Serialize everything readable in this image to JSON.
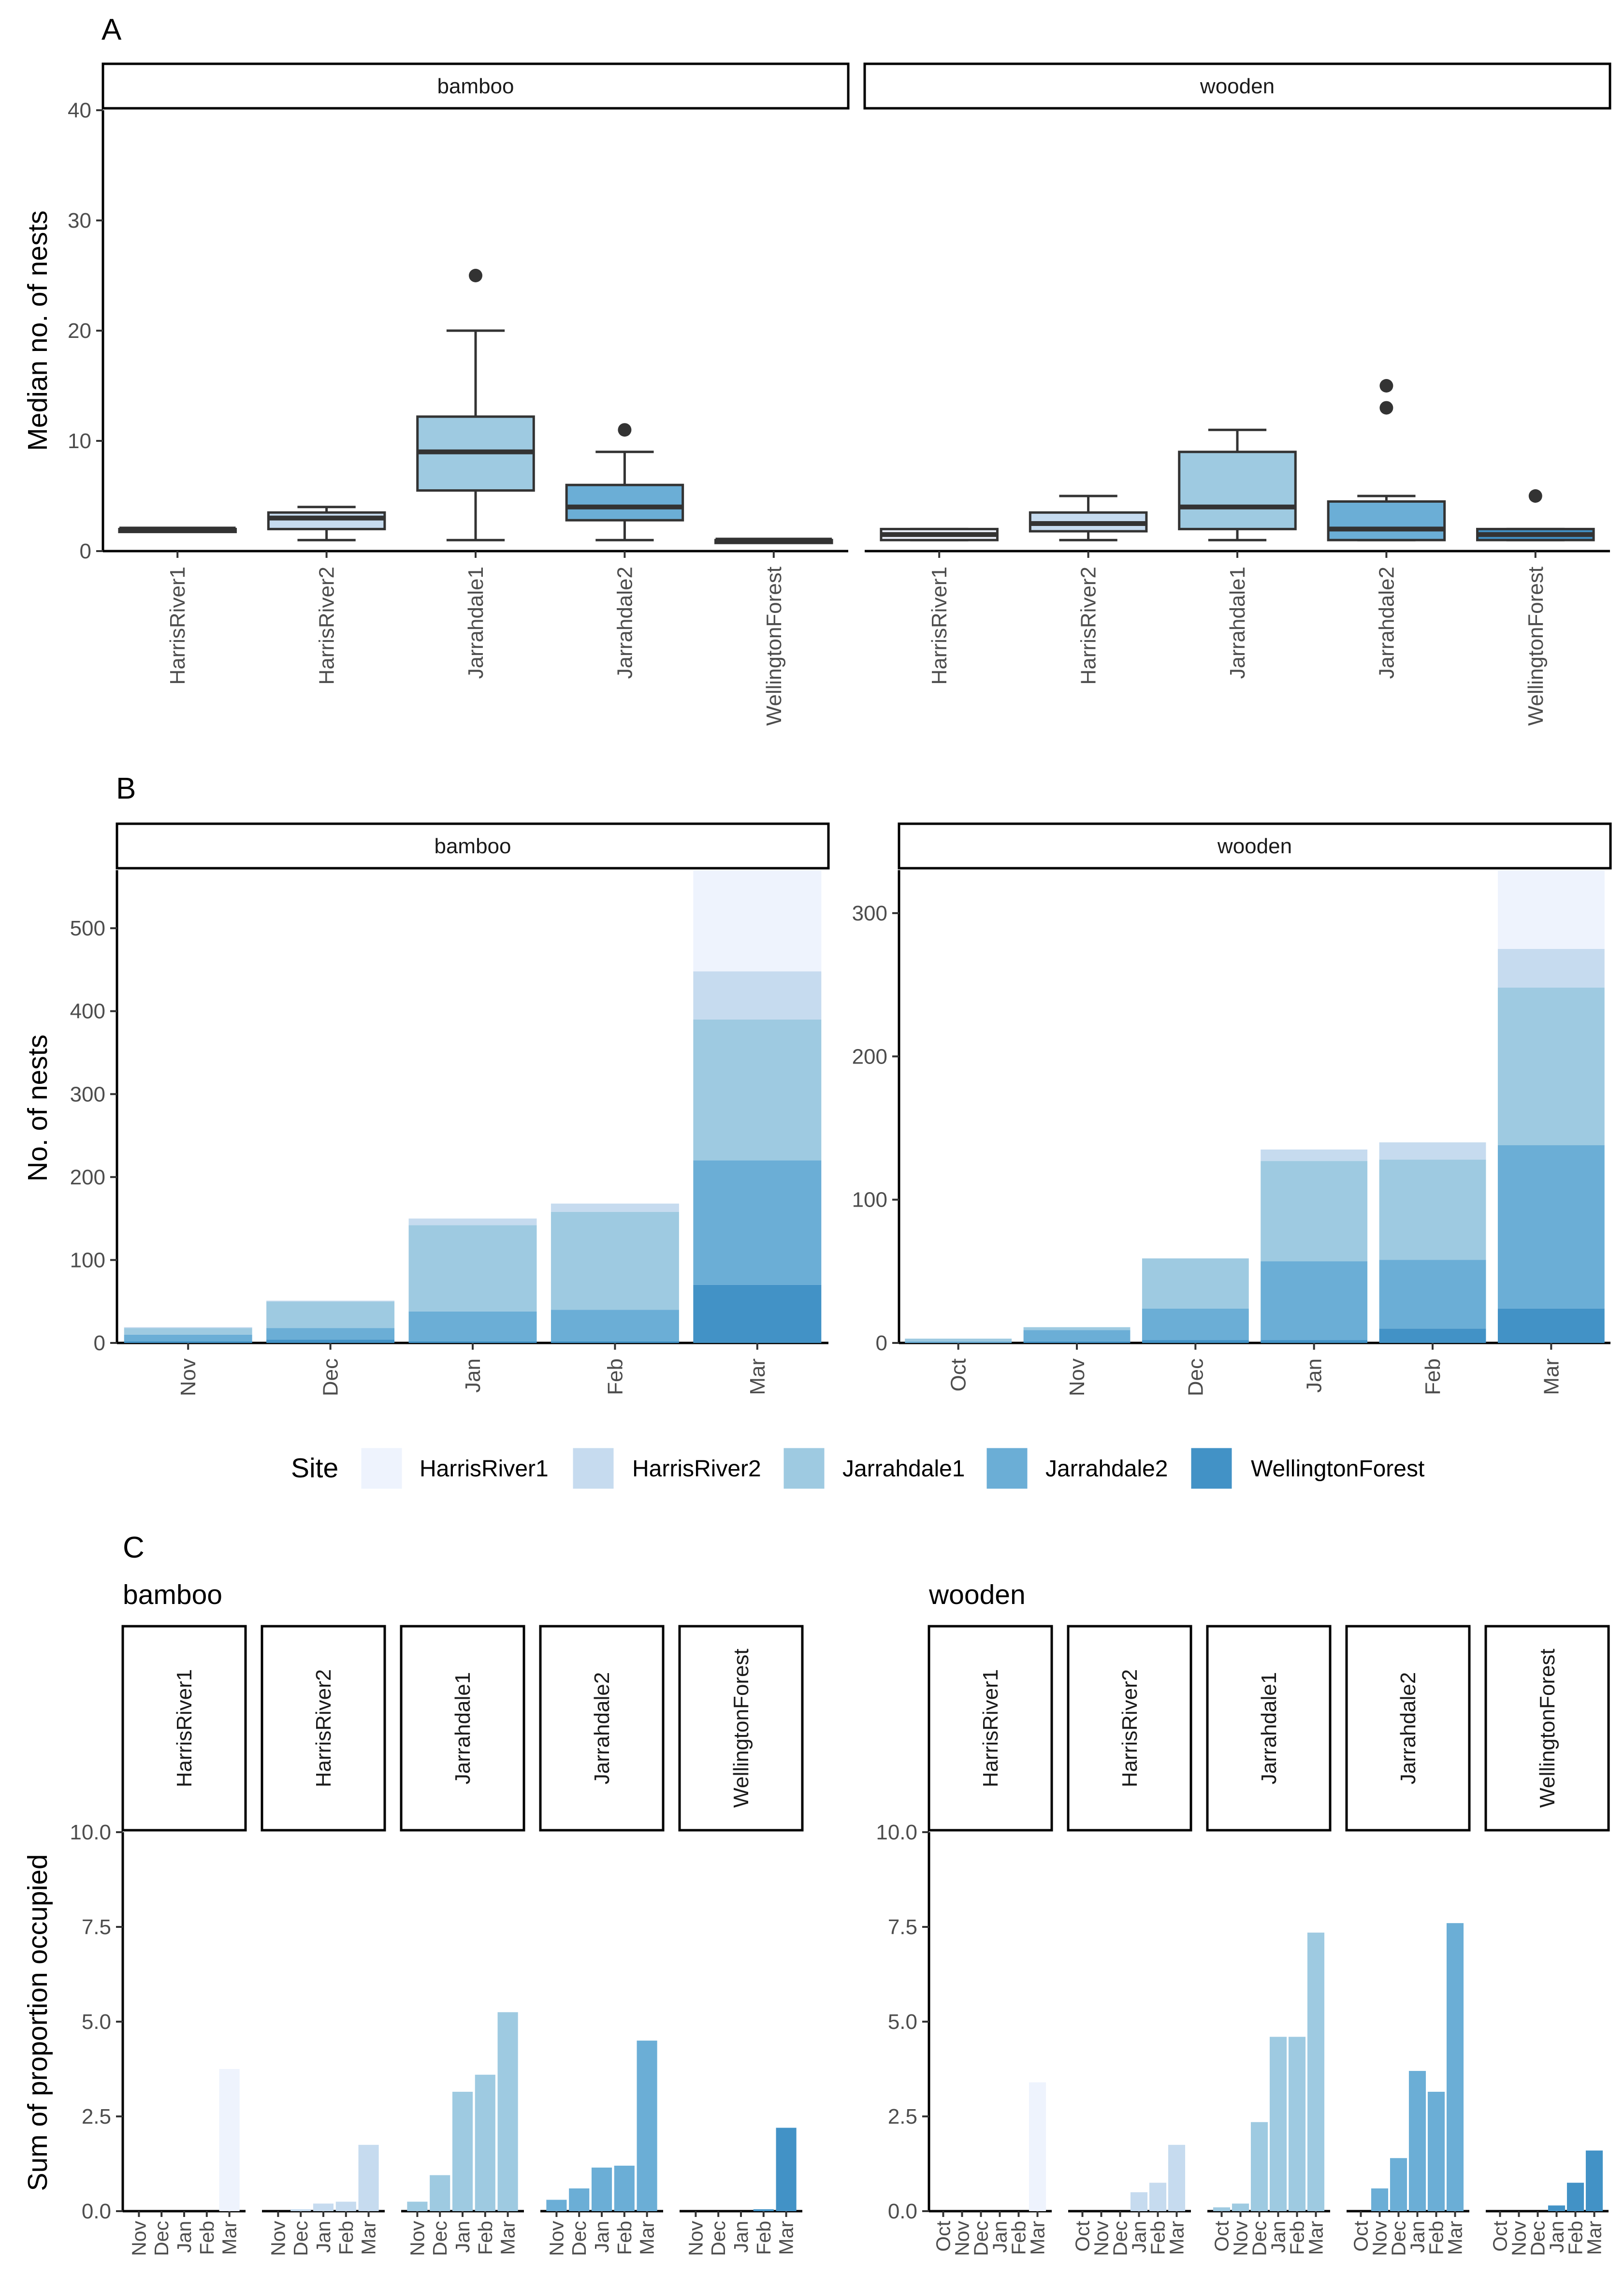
{
  "chart_data": [
    {
      "id": "A",
      "type": "box",
      "panel_label": "A",
      "ylabel": "Median no. of nests",
      "ylim": [
        0,
        40
      ],
      "yticks": [
        0,
        10,
        20,
        30,
        40
      ],
      "facets": [
        {
          "name": "bamboo",
          "boxes": [
            {
              "site": "HarrisRiver1",
              "color": "#eef3fd",
              "min": 2,
              "q1": 2,
              "median": 2,
              "q3": 2,
              "max": 2,
              "outliers": []
            },
            {
              "site": "HarrisRiver2",
              "color": "#c6dbef",
              "min": 1,
              "q1": 2,
              "median": 3,
              "q3": 3.5,
              "max": 4,
              "outliers": []
            },
            {
              "site": "Jarrahdale1",
              "color": "#9ecae1",
              "min": 1,
              "q1": 5.5,
              "median": 9,
              "q3": 12.2,
              "max": 20,
              "outliers": [
                25
              ]
            },
            {
              "site": "Jarrahdale2",
              "color": "#6baed6",
              "min": 1,
              "q1": 2.8,
              "median": 4,
              "q3": 6,
              "max": 9,
              "outliers": [
                11
              ]
            },
            {
              "site": "WellingtonForest",
              "color": "#4292c6",
              "min": 1,
              "q1": 1,
              "median": 1,
              "q3": 1,
              "max": 1,
              "outliers": []
            }
          ]
        },
        {
          "name": "wooden",
          "boxes": [
            {
              "site": "HarrisRiver1",
              "color": "#eef3fd",
              "min": 1,
              "q1": 1,
              "median": 1.5,
              "q3": 2,
              "max": 2,
              "outliers": []
            },
            {
              "site": "HarrisRiver2",
              "color": "#c6dbef",
              "min": 1,
              "q1": 1.8,
              "median": 2.5,
              "q3": 3.5,
              "max": 5,
              "outliers": []
            },
            {
              "site": "Jarrahdale1",
              "color": "#9ecae1",
              "min": 1,
              "q1": 2,
              "median": 4,
              "q3": 9,
              "max": 11,
              "outliers": []
            },
            {
              "site": "Jarrahdale2",
              "color": "#6baed6",
              "min": 1,
              "q1": 1,
              "median": 2,
              "q3": 4.5,
              "max": 5,
              "outliers": [
                13,
                15
              ]
            },
            {
              "site": "WellingtonForest",
              "color": "#4292c6",
              "min": 1,
              "q1": 1,
              "median": 1.5,
              "q3": 2,
              "max": 2,
              "outliers": [
                5
              ]
            }
          ]
        }
      ]
    },
    {
      "id": "B",
      "type": "stacked-bar",
      "panel_label": "B",
      "ylabel": "No. of nests",
      "facets": [
        {
          "name": "bamboo",
          "ylim": [
            0,
            570
          ],
          "yticks": [
            0,
            100,
            200,
            300,
            400,
            500
          ],
          "categories": [
            "Nov",
            "Dec",
            "Jan",
            "Feb",
            "Mar"
          ],
          "series": [
            {
              "name": "WellingtonForest",
              "values": [
                2,
                4,
                2,
                2,
                70
              ]
            },
            {
              "name": "Jarrahdale2",
              "values": [
                8,
                14,
                36,
                38,
                150
              ]
            },
            {
              "name": "Jarrahdale1",
              "values": [
                8,
                32,
                104,
                118,
                170
              ]
            },
            {
              "name": "HarrisRiver2",
              "values": [
                1,
                1,
                8,
                10,
                58
              ]
            },
            {
              "name": "HarrisRiver1",
              "values": [
                0,
                0,
                0,
                0,
                122
              ]
            }
          ]
        },
        {
          "name": "wooden",
          "ylim": [
            0,
            330
          ],
          "yticks": [
            0,
            100,
            200,
            300
          ],
          "categories": [
            "Oct",
            "Nov",
            "Dec",
            "Jan",
            "Feb",
            "Mar"
          ],
          "series": [
            {
              "name": "WellingtonForest",
              "values": [
                0,
                1,
                2,
                2,
                10,
                24
              ]
            },
            {
              "name": "Jarrahdale2",
              "values": [
                1,
                8,
                22,
                55,
                48,
                114
              ]
            },
            {
              "name": "Jarrahdale1",
              "values": [
                2,
                2,
                35,
                70,
                70,
                110
              ]
            },
            {
              "name": "HarrisRiver2",
              "values": [
                0,
                0,
                0,
                8,
                12,
                27
              ]
            },
            {
              "name": "HarrisRiver1",
              "values": [
                0,
                0,
                0,
                0,
                0,
                55
              ]
            }
          ]
        }
      ]
    },
    {
      "id": "C",
      "type": "bar",
      "panel_label": "C",
      "ylabel": "Sum of proportion occupied",
      "ylim": [
        0,
        10
      ],
      "yticks": [
        "0.0",
        "2.5",
        "5.0",
        "7.5",
        "10.0"
      ],
      "groups": [
        {
          "name": "bamboo",
          "facets": [
            {
              "site": "HarrisRiver1",
              "color": "#eef3fd",
              "categories": [
                "Nov",
                "Dec",
                "Jan",
                "Feb",
                "Mar"
              ],
              "values": [
                0,
                0,
                0,
                0,
                3.75
              ]
            },
            {
              "site": "HarrisRiver2",
              "color": "#c6dbef",
              "categories": [
                "Nov",
                "Dec",
                "Jan",
                "Feb",
                "Mar"
              ],
              "values": [
                0,
                0.05,
                0.2,
                0.25,
                1.75
              ]
            },
            {
              "site": "Jarrahdale1",
              "color": "#9ecae1",
              "categories": [
                "Nov",
                "Dec",
                "Jan",
                "Feb",
                "Mar"
              ],
              "values": [
                0.25,
                0.95,
                3.15,
                3.6,
                5.25
              ]
            },
            {
              "site": "Jarrahdale2",
              "color": "#6baed6",
              "categories": [
                "Nov",
                "Dec",
                "Jan",
                "Feb",
                "Mar"
              ],
              "values": [
                0.3,
                0.6,
                1.15,
                1.2,
                4.5
              ]
            },
            {
              "site": "WellingtonForest",
              "color": "#4292c6",
              "categories": [
                "Nov",
                "Dec",
                "Jan",
                "Feb",
                "Mar"
              ],
              "values": [
                0,
                0,
                0,
                0.05,
                2.2
              ]
            }
          ]
        },
        {
          "name": "wooden",
          "facets": [
            {
              "site": "HarrisRiver1",
              "color": "#eef3fd",
              "categories": [
                "Oct",
                "Nov",
                "Dec",
                "Jan",
                "Feb",
                "Mar"
              ],
              "values": [
                0,
                0,
                0,
                0,
                0,
                3.4
              ]
            },
            {
              "site": "HarrisRiver2",
              "color": "#c6dbef",
              "categories": [
                "Oct",
                "Nov",
                "Dec",
                "Jan",
                "Feb",
                "Mar"
              ],
              "values": [
                0,
                0,
                0,
                0.5,
                0.75,
                1.75
              ]
            },
            {
              "site": "Jarrahdale1",
              "color": "#9ecae1",
              "categories": [
                "Oct",
                "Nov",
                "Dec",
                "Jan",
                "Feb",
                "Mar"
              ],
              "values": [
                0.1,
                0.2,
                2.35,
                4.6,
                4.6,
                7.35
              ]
            },
            {
              "site": "Jarrahdale2",
              "color": "#6baed6",
              "categories": [
                "Oct",
                "Nov",
                "Dec",
                "Jan",
                "Feb",
                "Mar"
              ],
              "values": [
                0,
                0.6,
                1.4,
                3.7,
                3.15,
                7.6
              ]
            },
            {
              "site": "WellingtonForest",
              "color": "#4292c6",
              "categories": [
                "Oct",
                "Nov",
                "Dec",
                "Jan",
                "Feb",
                "Mar"
              ],
              "values": [
                0,
                0,
                0,
                0.15,
                0.75,
                1.6
              ]
            }
          ]
        }
      ]
    }
  ],
  "legend": {
    "title": "Site",
    "position": "center",
    "entries": [
      {
        "label": "HarrisRiver1",
        "color": "#eef3fd"
      },
      {
        "label": "HarrisRiver2",
        "color": "#c6dbef"
      },
      {
        "label": "Jarrahdale1",
        "color": "#9ecae1"
      },
      {
        "label": "Jarrahdale2",
        "color": "#6baed6"
      },
      {
        "label": "WellingtonForest",
        "color": "#4292c6"
      }
    ]
  }
}
